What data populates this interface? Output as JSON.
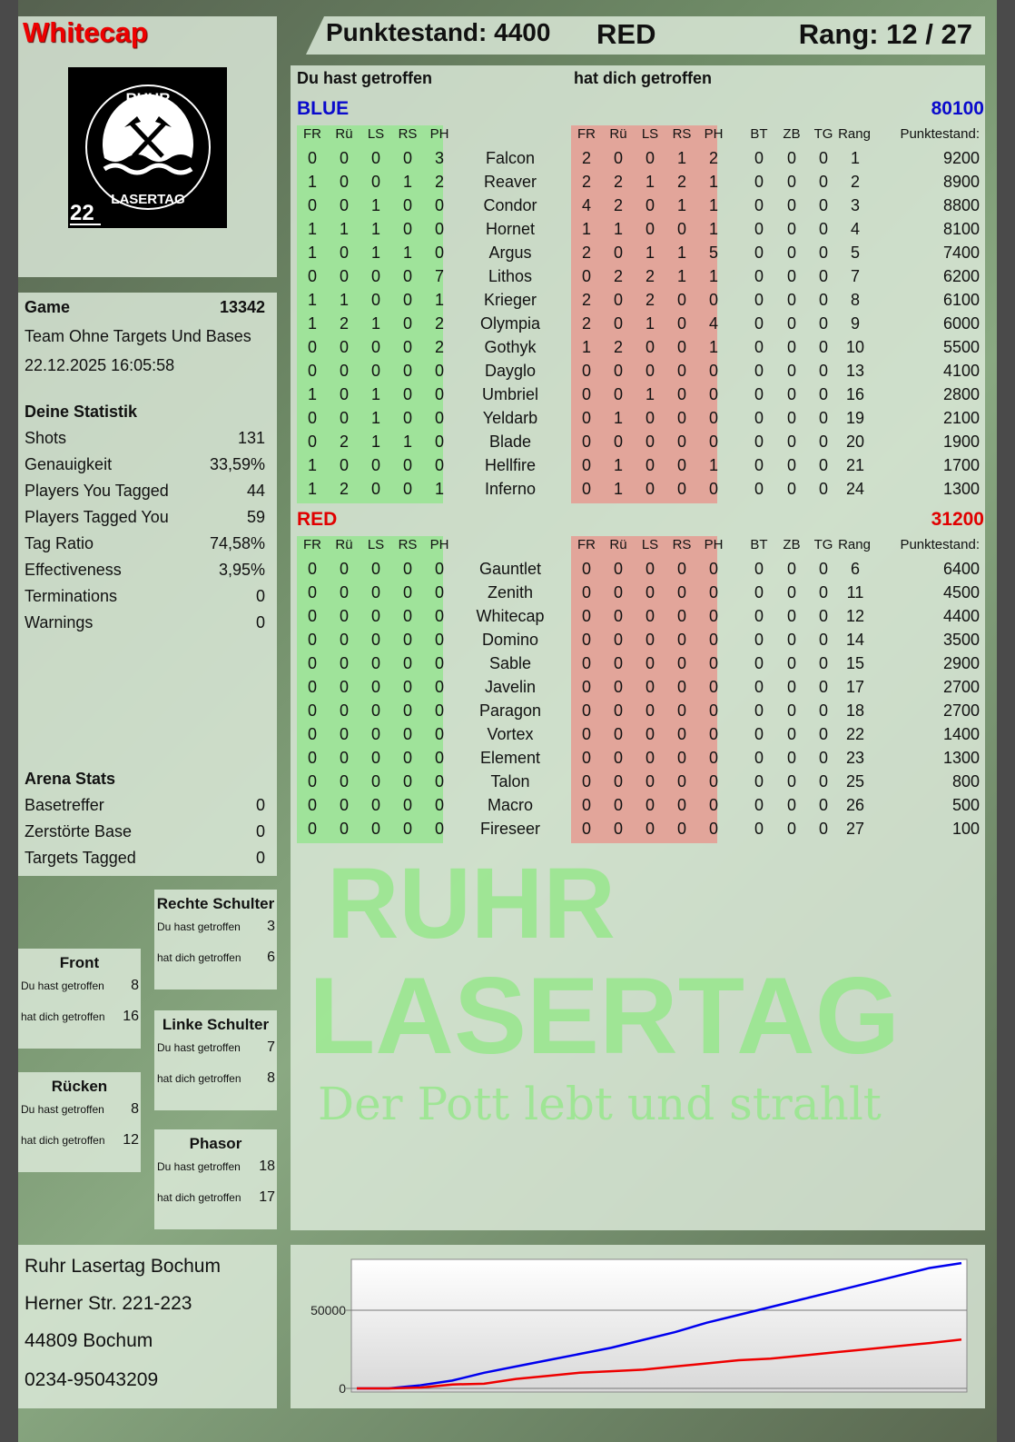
{
  "header": {
    "player_name": "Whitecap",
    "score_label": "Punktestand: 4400",
    "team": "RED",
    "rank_label": "Rang: 12 / 27"
  },
  "logo": {
    "top_text": "RUHR",
    "bottom_text": "LASERTAG",
    "number": "22"
  },
  "game": {
    "label": "Game",
    "id": "13342",
    "mode": "Team Ohne Targets Und Bases",
    "datetime": "22.12.2025 16:05:58"
  },
  "stats": {
    "title": "Deine Statistik",
    "items": [
      {
        "label": "Shots",
        "value": "131"
      },
      {
        "label": "Genauigkeit",
        "value": "33,59%"
      },
      {
        "label": "Players You Tagged",
        "value": "44"
      },
      {
        "label": "Players Tagged You",
        "value": "59"
      },
      {
        "label": "Tag Ratio",
        "value": "74,58%"
      },
      {
        "label": "Effectiveness",
        "value": "3,95%"
      },
      {
        "label": "Terminations",
        "value": "0"
      },
      {
        "label": "Warnings",
        "value": "0"
      }
    ]
  },
  "arena": {
    "title": "Arena Stats",
    "items": [
      {
        "label": "Basetreffer",
        "value": "0"
      },
      {
        "label": "Zerstörte Base",
        "value": "0"
      },
      {
        "label": "Targets Tagged",
        "value": "0"
      }
    ]
  },
  "zones": [
    {
      "title": "Rechte Schulter",
      "hit_label": "Du hast getroffen",
      "hit": "3",
      "got_label": "hat dich getroffen",
      "got": "6"
    },
    {
      "title": "Front",
      "hit_label": "Du hast getroffen",
      "hit": "8",
      "got_label": "hat dich getroffen",
      "got": "16"
    },
    {
      "title": "Linke Schulter",
      "hit_label": "Du hast getroffen",
      "hit": "7",
      "got_label": "hat dich getroffen",
      "got": "8"
    },
    {
      "title": "Rücken",
      "hit_label": "Du hast getroffen",
      "hit": "8",
      "got_label": "hat dich getroffen",
      "got": "12"
    },
    {
      "title": "Phasor",
      "hit_label": "Du hast getroffen",
      "hit": "18",
      "got_label": "hat dich getroffen",
      "got": "17"
    }
  ],
  "address": [
    "Ruhr Lasertag Bochum",
    "Herner Str. 221-223",
    "44809 Bochum",
    "0234-95043209"
  ],
  "watermark": {
    "line1": "RUHR",
    "line2": "LASERTAG",
    "slogan": "Der Pott lebt und strahlt"
  },
  "table": {
    "hit_title": "Du hast getroffen",
    "got_title": "hat dich getroffen",
    "zone_cols": [
      "FR",
      "Rü",
      "LS",
      "RS",
      "PH"
    ],
    "extra_cols": [
      "BT",
      "ZB",
      "TG",
      "Rang"
    ],
    "points_col": "Punktestand:",
    "teams": [
      {
        "name": "BLUE",
        "color": "#0a0acc",
        "score": "80100",
        "players": [
          {
            "n": "Falcon",
            "hit": [
              0,
              0,
              0,
              0,
              3
            ],
            "got": [
              2,
              0,
              0,
              1,
              2
            ],
            "x": [
              0,
              0,
              0,
              1
            ],
            "p": 9200
          },
          {
            "n": "Reaver",
            "hit": [
              1,
              0,
              0,
              1,
              2
            ],
            "got": [
              2,
              2,
              1,
              2,
              1
            ],
            "x": [
              0,
              0,
              0,
              2
            ],
            "p": 8900
          },
          {
            "n": "Condor",
            "hit": [
              0,
              0,
              1,
              0,
              0
            ],
            "got": [
              4,
              2,
              0,
              1,
              1
            ],
            "x": [
              0,
              0,
              0,
              3
            ],
            "p": 8800
          },
          {
            "n": "Hornet",
            "hit": [
              1,
              1,
              1,
              0,
              0
            ],
            "got": [
              1,
              1,
              0,
              0,
              1
            ],
            "x": [
              0,
              0,
              0,
              4
            ],
            "p": 8100
          },
          {
            "n": "Argus",
            "hit": [
              1,
              0,
              1,
              1,
              0
            ],
            "got": [
              2,
              0,
              1,
              1,
              5
            ],
            "x": [
              0,
              0,
              0,
              5
            ],
            "p": 7400
          },
          {
            "n": "Lithos",
            "hit": [
              0,
              0,
              0,
              0,
              7
            ],
            "got": [
              0,
              2,
              2,
              1,
              1
            ],
            "x": [
              0,
              0,
              0,
              7
            ],
            "p": 6200
          },
          {
            "n": "Krieger",
            "hit": [
              1,
              1,
              0,
              0,
              1
            ],
            "got": [
              2,
              0,
              2,
              0,
              0
            ],
            "x": [
              0,
              0,
              0,
              8
            ],
            "p": 6100
          },
          {
            "n": "Olympia",
            "hit": [
              1,
              2,
              1,
              0,
              2
            ],
            "got": [
              2,
              0,
              1,
              0,
              4
            ],
            "x": [
              0,
              0,
              0,
              9
            ],
            "p": 6000
          },
          {
            "n": "Gothyk",
            "hit": [
              0,
              0,
              0,
              0,
              2
            ],
            "got": [
              1,
              2,
              0,
              0,
              1
            ],
            "x": [
              0,
              0,
              0,
              10
            ],
            "p": 5500
          },
          {
            "n": "Dayglo",
            "hit": [
              0,
              0,
              0,
              0,
              0
            ],
            "got": [
              0,
              0,
              0,
              0,
              0
            ],
            "x": [
              0,
              0,
              0,
              13
            ],
            "p": 4100
          },
          {
            "n": "Umbriel",
            "hit": [
              1,
              0,
              1,
              0,
              0
            ],
            "got": [
              0,
              0,
              1,
              0,
              0
            ],
            "x": [
              0,
              0,
              0,
              16
            ],
            "p": 2800
          },
          {
            "n": "Yeldarb",
            "hit": [
              0,
              0,
              1,
              0,
              0
            ],
            "got": [
              0,
              1,
              0,
              0,
              0
            ],
            "x": [
              0,
              0,
              0,
              19
            ],
            "p": 2100
          },
          {
            "n": "Blade",
            "hit": [
              0,
              2,
              1,
              1,
              0
            ],
            "got": [
              0,
              0,
              0,
              0,
              0
            ],
            "x": [
              0,
              0,
              0,
              20
            ],
            "p": 1900
          },
          {
            "n": "Hellfire",
            "hit": [
              1,
              0,
              0,
              0,
              0
            ],
            "got": [
              0,
              1,
              0,
              0,
              1
            ],
            "x": [
              0,
              0,
              0,
              21
            ],
            "p": 1700
          },
          {
            "n": "Inferno",
            "hit": [
              1,
              2,
              0,
              0,
              1
            ],
            "got": [
              0,
              1,
              0,
              0,
              0
            ],
            "x": [
              0,
              0,
              0,
              24
            ],
            "p": 1300
          }
        ]
      },
      {
        "name": "RED",
        "color": "#e00000",
        "score": "31200",
        "players": [
          {
            "n": "Gauntlet",
            "hit": [
              0,
              0,
              0,
              0,
              0
            ],
            "got": [
              0,
              0,
              0,
              0,
              0
            ],
            "x": [
              0,
              0,
              0,
              6
            ],
            "p": 6400
          },
          {
            "n": "Zenith",
            "hit": [
              0,
              0,
              0,
              0,
              0
            ],
            "got": [
              0,
              0,
              0,
              0,
              0
            ],
            "x": [
              0,
              0,
              0,
              11
            ],
            "p": 4500
          },
          {
            "n": "Whitecap",
            "hit": [
              0,
              0,
              0,
              0,
              0
            ],
            "got": [
              0,
              0,
              0,
              0,
              0
            ],
            "x": [
              0,
              0,
              0,
              12
            ],
            "p": 4400
          },
          {
            "n": "Domino",
            "hit": [
              0,
              0,
              0,
              0,
              0
            ],
            "got": [
              0,
              0,
              0,
              0,
              0
            ],
            "x": [
              0,
              0,
              0,
              14
            ],
            "p": 3500
          },
          {
            "n": "Sable",
            "hit": [
              0,
              0,
              0,
              0,
              0
            ],
            "got": [
              0,
              0,
              0,
              0,
              0
            ],
            "x": [
              0,
              0,
              0,
              15
            ],
            "p": 2900
          },
          {
            "n": "Javelin",
            "hit": [
              0,
              0,
              0,
              0,
              0
            ],
            "got": [
              0,
              0,
              0,
              0,
              0
            ],
            "x": [
              0,
              0,
              0,
              17
            ],
            "p": 2700
          },
          {
            "n": "Paragon",
            "hit": [
              0,
              0,
              0,
              0,
              0
            ],
            "got": [
              0,
              0,
              0,
              0,
              0
            ],
            "x": [
              0,
              0,
              0,
              18
            ],
            "p": 2700
          },
          {
            "n": "Vortex",
            "hit": [
              0,
              0,
              0,
              0,
              0
            ],
            "got": [
              0,
              0,
              0,
              0,
              0
            ],
            "x": [
              0,
              0,
              0,
              22
            ],
            "p": 1400
          },
          {
            "n": "Element",
            "hit": [
              0,
              0,
              0,
              0,
              0
            ],
            "got": [
              0,
              0,
              0,
              0,
              0
            ],
            "x": [
              0,
              0,
              0,
              23
            ],
            "p": 1300
          },
          {
            "n": "Talon",
            "hit": [
              0,
              0,
              0,
              0,
              0
            ],
            "got": [
              0,
              0,
              0,
              0,
              0
            ],
            "x": [
              0,
              0,
              0,
              25
            ],
            "p": 800
          },
          {
            "n": "Macro",
            "hit": [
              0,
              0,
              0,
              0,
              0
            ],
            "got": [
              0,
              0,
              0,
              0,
              0
            ],
            "x": [
              0,
              0,
              0,
              26
            ],
            "p": 500
          },
          {
            "n": "Fireseer",
            "hit": [
              0,
              0,
              0,
              0,
              0
            ],
            "got": [
              0,
              0,
              0,
              0,
              0
            ],
            "x": [
              0,
              0,
              0,
              27
            ],
            "p": 100
          }
        ]
      }
    ]
  },
  "colors": {
    "hit_bg": "#9fe39a",
    "got_bg": "#e2a59a",
    "name_red": "#ee0000"
  },
  "chart_data": {
    "type": "line",
    "ylim": [
      0,
      82500
    ],
    "yticks": [
      0,
      50000
    ],
    "ytick_labels": [
      "0",
      "50000"
    ],
    "grid": true,
    "series": [
      {
        "color": "#0000ee",
        "values": [
          0,
          0,
          2000,
          5000,
          10000,
          14000,
          18000,
          22000,
          26000,
          31000,
          36000,
          42000,
          47000,
          52000,
          57000,
          62000,
          67000,
          72000,
          77000,
          80100
        ]
      },
      {
        "color": "#ee0000",
        "values": [
          0,
          0,
          500,
          2500,
          3000,
          6000,
          8000,
          10000,
          11000,
          12000,
          14000,
          16000,
          18000,
          19000,
          21000,
          23000,
          25000,
          27000,
          29000,
          31200
        ]
      }
    ]
  }
}
